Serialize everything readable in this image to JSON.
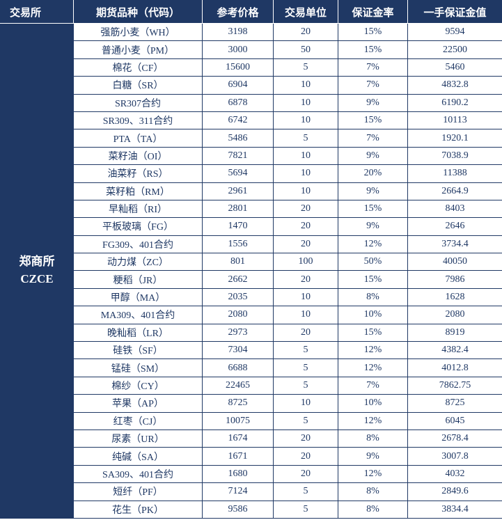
{
  "chart_data": {
    "type": "table",
    "columns": [
      "交易所",
      "期货品种（代码）",
      "参考价格",
      "交易单位",
      "保证金率",
      "一手保证金值"
    ],
    "exchange": {
      "name": "郑商所",
      "code": "CZCE"
    },
    "rows": [
      {
        "product": "强筋小麦（WH）",
        "price": "3198",
        "unit": "20",
        "margin_rate": "15%",
        "margin_value": "9594"
      },
      {
        "product": "普通小麦（PM）",
        "price": "3000",
        "unit": "50",
        "margin_rate": "15%",
        "margin_value": "22500"
      },
      {
        "product": "棉花（CF）",
        "price": "15600",
        "unit": "5",
        "margin_rate": "7%",
        "margin_value": "5460"
      },
      {
        "product": "白糖（SR）",
        "price": "6904",
        "unit": "10",
        "margin_rate": "7%",
        "margin_value": "4832.8"
      },
      {
        "product": "SR307合约",
        "price": "6878",
        "unit": "10",
        "margin_rate": "9%",
        "margin_value": "6190.2"
      },
      {
        "product": "SR309、311合约",
        "price": "6742",
        "unit": "10",
        "margin_rate": "15%",
        "margin_value": "10113"
      },
      {
        "product": "PTA（TA）",
        "price": "5486",
        "unit": "5",
        "margin_rate": "7%",
        "margin_value": "1920.1"
      },
      {
        "product": "菜籽油（OI）",
        "price": "7821",
        "unit": "10",
        "margin_rate": "9%",
        "margin_value": "7038.9"
      },
      {
        "product": "油菜籽（RS）",
        "price": "5694",
        "unit": "10",
        "margin_rate": "20%",
        "margin_value": "11388"
      },
      {
        "product": "菜籽粕（RM）",
        "price": "2961",
        "unit": "10",
        "margin_rate": "9%",
        "margin_value": "2664.9"
      },
      {
        "product": "早籼稻（RI）",
        "price": "2801",
        "unit": "20",
        "margin_rate": "15%",
        "margin_value": "8403"
      },
      {
        "product": "平板玻璃（FG）",
        "price": "1470",
        "unit": "20",
        "margin_rate": "9%",
        "margin_value": "2646"
      },
      {
        "product": "FG309、401合约",
        "price": "1556",
        "unit": "20",
        "margin_rate": "12%",
        "margin_value": "3734.4"
      },
      {
        "product": "动力煤（ZC）",
        "price": "801",
        "unit": "100",
        "margin_rate": "50%",
        "margin_value": "40050"
      },
      {
        "product": "粳稻（JR）",
        "price": "2662",
        "unit": "20",
        "margin_rate": "15%",
        "margin_value": "7986"
      },
      {
        "product": "甲醇（MA）",
        "price": "2035",
        "unit": "10",
        "margin_rate": "8%",
        "margin_value": "1628"
      },
      {
        "product": "MA309、401合约",
        "price": "2080",
        "unit": "10",
        "margin_rate": "10%",
        "margin_value": "2080"
      },
      {
        "product": "晚籼稻（LR）",
        "price": "2973",
        "unit": "20",
        "margin_rate": "15%",
        "margin_value": "8919"
      },
      {
        "product": "硅铁（SF）",
        "price": "7304",
        "unit": "5",
        "margin_rate": "12%",
        "margin_value": "4382.4"
      },
      {
        "product": "锰硅（SM）",
        "price": "6688",
        "unit": "5",
        "margin_rate": "12%",
        "margin_value": "4012.8"
      },
      {
        "product": "棉纱（CY）",
        "price": "22465",
        "unit": "5",
        "margin_rate": "7%",
        "margin_value": "7862.75"
      },
      {
        "product": "苹果（AP）",
        "price": "8725",
        "unit": "10",
        "margin_rate": "10%",
        "margin_value": "8725"
      },
      {
        "product": "红枣（CJ）",
        "price": "10075",
        "unit": "5",
        "margin_rate": "12%",
        "margin_value": "6045"
      },
      {
        "product": "尿素（UR）",
        "price": "1674",
        "unit": "20",
        "margin_rate": "8%",
        "margin_value": "2678.4"
      },
      {
        "product": "纯碱（SA）",
        "price": "1671",
        "unit": "20",
        "margin_rate": "9%",
        "margin_value": "3007.8"
      },
      {
        "product": "SA309、401合约",
        "price": "1680",
        "unit": "20",
        "margin_rate": "12%",
        "margin_value": "4032"
      },
      {
        "product": "短纤（PF）",
        "price": "7124",
        "unit": "5",
        "margin_rate": "8%",
        "margin_value": "2849.6"
      },
      {
        "product": "花生（PK）",
        "price": "9586",
        "unit": "5",
        "margin_rate": "8%",
        "margin_value": "3834.4"
      }
    ]
  },
  "colors": {
    "header_bg": "#1f3864",
    "header_text": "#ffffff",
    "body_text": "#1f3864",
    "border": "#1f3864",
    "row_bg": "#ffffff"
  }
}
